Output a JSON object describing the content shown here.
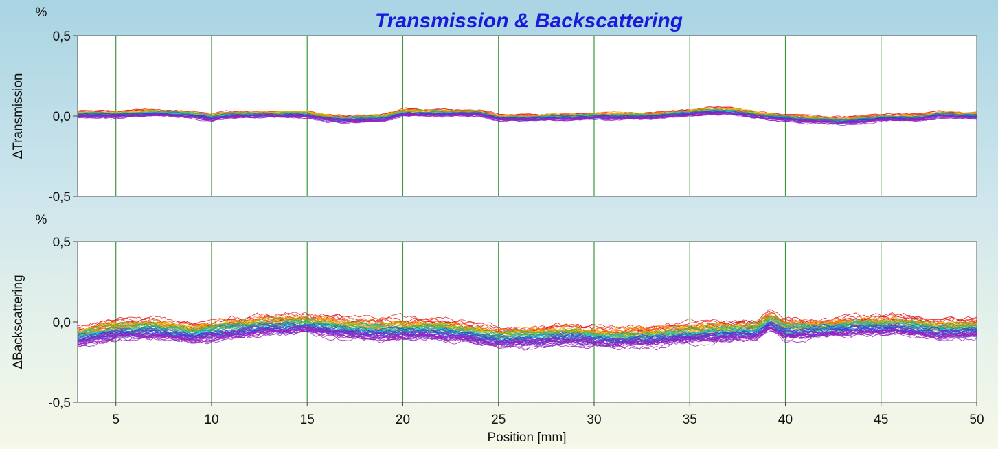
{
  "chart_data": {
    "type": "line",
    "title": "Transmission & Backscattering",
    "xlabel": "Position [mm]",
    "xlim": [
      3,
      50
    ],
    "x_ticks": [
      5,
      10,
      15,
      20,
      25,
      30,
      35,
      40,
      45,
      50
    ],
    "x_tick_labels": [
      "5",
      "10",
      "15",
      "20",
      "25",
      "30",
      "35",
      "40",
      "45",
      "50"
    ],
    "grid": true,
    "panels": [
      {
        "id": "transmission",
        "ylabel": "ΔTransmission",
        "unit": "%",
        "ylim": [
          -0.5,
          0.5
        ],
        "y_ticks": [
          -0.5,
          0.0,
          0.5
        ],
        "y_tick_labels": [
          "-0,5",
          "0,0",
          "0,5"
        ],
        "profile": {
          "x": [
            3,
            5,
            7,
            9,
            10,
            11,
            13,
            15,
            16,
            17,
            19,
            20,
            22,
            24,
            25,
            27,
            30,
            33,
            35,
            36,
            37,
            39,
            41,
            43,
            45,
            47,
            48,
            50
          ],
          "y": [
            0.01,
            0.01,
            0.02,
            0.01,
            -0.01,
            0.01,
            0.01,
            0.01,
            -0.01,
            -0.02,
            -0.01,
            0.02,
            0.02,
            0.02,
            -0.01,
            -0.01,
            0.0,
            0.0,
            0.02,
            0.03,
            0.03,
            0.0,
            -0.02,
            -0.03,
            -0.01,
            -0.01,
            0.01,
            0.0
          ]
        },
        "curve_spread": 0.02,
        "curve_noise": 0.01,
        "curve_count": 40
      },
      {
        "id": "backscattering",
        "ylabel": "ΔBackscattering",
        "unit": "%",
        "ylim": [
          -0.5,
          0.5
        ],
        "y_ticks": [
          -0.5,
          0.0,
          0.5
        ],
        "y_tick_labels": [
          "-0,5",
          "0,0",
          "0,5"
        ],
        "profile": {
          "x": [
            3,
            5,
            7,
            9,
            11,
            13,
            15,
            17,
            19,
            21,
            23,
            25,
            27,
            29,
            31,
            33,
            35,
            37,
            38.5,
            39.2,
            40,
            42,
            44,
            46,
            48,
            50
          ],
          "y": [
            -0.09,
            -0.05,
            -0.04,
            -0.07,
            -0.04,
            -0.02,
            -0.01,
            -0.04,
            -0.05,
            -0.04,
            -0.06,
            -0.1,
            -0.09,
            -0.08,
            -0.1,
            -0.09,
            -0.07,
            -0.06,
            -0.05,
            0.01,
            -0.05,
            -0.04,
            -0.02,
            -0.02,
            -0.05,
            -0.04
          ]
        },
        "curve_spread": 0.06,
        "curve_noise": 0.025,
        "curve_count": 60
      }
    ],
    "series_colors": [
      "#e41a1c",
      "#ff7f00",
      "#e6c200",
      "#4daf4a",
      "#17becf",
      "#1f77b4",
      "#3a3ad6",
      "#7b2fd0",
      "#9b1fb8"
    ]
  }
}
